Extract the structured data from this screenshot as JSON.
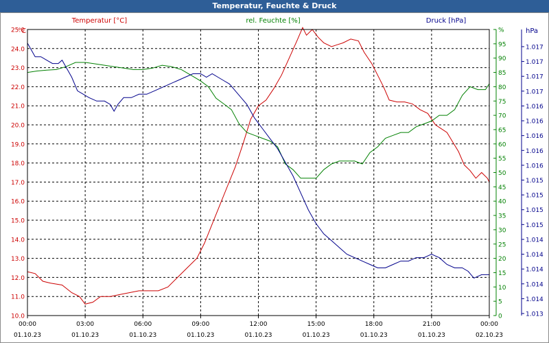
{
  "window": {
    "title": "Temperatur, Feuchte & Druck"
  },
  "legend": {
    "temperature": "Temperatur [°C]",
    "humidity": "rel. Feuchte [%]",
    "pressure": "Druck [hPa]"
  },
  "colors": {
    "temperature": "#cc0000",
    "humidity": "#008000",
    "pressure": "#00008b",
    "grid": "#000000",
    "titlebar": "#2e5e97"
  },
  "chart_data": {
    "type": "line",
    "title": "Temperatur, Feuchte & Druck",
    "grid": true,
    "x_ticks": [
      {
        "time": "00:00",
        "date": "01.10.23"
      },
      {
        "time": "03:00",
        "date": "01.10.23"
      },
      {
        "time": "06:00",
        "date": "01.10.23"
      },
      {
        "time": "09:00",
        "date": "01.10.23"
      },
      {
        "time": "12:00",
        "date": "01.10.23"
      },
      {
        "time": "15:00",
        "date": "01.10.23"
      },
      {
        "time": "18:00",
        "date": "01.10.23"
      },
      {
        "time": "21:00",
        "date": "01.10.23"
      },
      {
        "time": "00:00",
        "date": "02.10.23"
      }
    ],
    "x_range_hours": [
      0,
      24
    ],
    "axes": {
      "temperature": {
        "unit": "°C",
        "side": "left",
        "range": [
          10.0,
          25.0
        ],
        "ticks": [
          "10.0",
          "11.0",
          "12.0",
          "13.0",
          "14.0",
          "15.0",
          "16.0",
          "17.0",
          "18.0",
          "19.0",
          "20.0",
          "21.0",
          "22.0",
          "23.0",
          "24.0",
          "25.0"
        ]
      },
      "humidity": {
        "unit": "%",
        "side": "right",
        "range": [
          0,
          100
        ],
        "ticks": [
          "0",
          "5",
          "10",
          "15",
          "20",
          "25",
          "30",
          "35",
          "40",
          "45",
          "50",
          "55",
          "60",
          "65",
          "70",
          "75",
          "80",
          "85",
          "90",
          "95",
          "%"
        ]
      },
      "pressure": {
        "unit": "hPa",
        "side": "right",
        "range": [
          1013.0,
          1017.2
        ],
        "ticks": [
          "1.013",
          "1.014",
          "1.014",
          "1.014",
          "1.014",
          "1.014",
          "1.015",
          "1.015",
          "1.015",
          "1.015",
          "1.016",
          "1.016",
          "1.016",
          "1.016",
          "1.016",
          "1.017",
          "1.017",
          "1.017",
          "1.017"
        ]
      }
    },
    "series": [
      {
        "name": "Temperatur [°C]",
        "axis": "temperature",
        "points": [
          [
            0,
            12.3
          ],
          [
            0.4,
            12.2
          ],
          [
            0.8,
            11.8
          ],
          [
            1.2,
            11.7
          ],
          [
            1.8,
            11.6
          ],
          [
            2.3,
            11.2
          ],
          [
            2.7,
            11.0
          ],
          [
            3.0,
            10.6
          ],
          [
            3.4,
            10.7
          ],
          [
            3.8,
            11.0
          ],
          [
            4.3,
            11.0
          ],
          [
            4.8,
            11.1
          ],
          [
            5.3,
            11.2
          ],
          [
            5.8,
            11.3
          ],
          [
            6.3,
            11.3
          ],
          [
            6.8,
            11.3
          ],
          [
            7.3,
            11.5
          ],
          [
            7.8,
            12.0
          ],
          [
            8.3,
            12.5
          ],
          [
            8.8,
            13.0
          ],
          [
            9.2,
            13.8
          ],
          [
            9.6,
            14.8
          ],
          [
            10.0,
            15.8
          ],
          [
            10.4,
            16.8
          ],
          [
            10.8,
            17.8
          ],
          [
            11.2,
            19.0
          ],
          [
            11.6,
            20.3
          ],
          [
            12.0,
            21.0
          ],
          [
            12.4,
            21.3
          ],
          [
            12.8,
            21.9
          ],
          [
            13.2,
            22.6
          ],
          [
            13.6,
            23.5
          ],
          [
            14.0,
            24.4
          ],
          [
            14.3,
            25.1
          ],
          [
            14.5,
            24.7
          ],
          [
            14.8,
            25.0
          ],
          [
            15.1,
            24.6
          ],
          [
            15.4,
            24.3
          ],
          [
            15.8,
            24.1
          ],
          [
            16.1,
            24.2
          ],
          [
            16.4,
            24.3
          ],
          [
            16.8,
            24.5
          ],
          [
            17.2,
            24.4
          ],
          [
            17.5,
            23.8
          ],
          [
            17.9,
            23.2
          ],
          [
            18.2,
            22.6
          ],
          [
            18.5,
            22.0
          ],
          [
            18.8,
            21.3
          ],
          [
            19.2,
            21.2
          ],
          [
            19.6,
            21.2
          ],
          [
            20.0,
            21.1
          ],
          [
            20.4,
            20.8
          ],
          [
            20.8,
            20.6
          ],
          [
            21.2,
            20.0
          ],
          [
            21.5,
            19.8
          ],
          [
            21.8,
            19.6
          ],
          [
            22.1,
            19.1
          ],
          [
            22.4,
            18.6
          ],
          [
            22.7,
            17.9
          ],
          [
            23.0,
            17.6
          ],
          [
            23.3,
            17.2
          ],
          [
            23.6,
            17.5
          ],
          [
            23.9,
            17.2
          ],
          [
            24.0,
            17.0
          ]
        ]
      },
      {
        "name": "rel. Feuchte [%]",
        "axis": "humidity",
        "points": [
          [
            0,
            85
          ],
          [
            0.5,
            85.5
          ],
          [
            1.0,
            85.8
          ],
          [
            1.5,
            86
          ],
          [
            2.0,
            87
          ],
          [
            2.5,
            88.5
          ],
          [
            3.0,
            88.5
          ],
          [
            3.5,
            88
          ],
          [
            4.0,
            87.5
          ],
          [
            4.5,
            87
          ],
          [
            5.0,
            86.5
          ],
          [
            5.5,
            86
          ],
          [
            6.0,
            86
          ],
          [
            6.5,
            86.5
          ],
          [
            7.0,
            87.5
          ],
          [
            7.5,
            87
          ],
          [
            8.0,
            86
          ],
          [
            8.5,
            84
          ],
          [
            9.0,
            82
          ],
          [
            9.4,
            80
          ],
          [
            9.8,
            76
          ],
          [
            10.2,
            74
          ],
          [
            10.6,
            72
          ],
          [
            11.0,
            67
          ],
          [
            11.4,
            64
          ],
          [
            11.8,
            63
          ],
          [
            12.2,
            62
          ],
          [
            12.6,
            61
          ],
          [
            13.0,
            59
          ],
          [
            13.4,
            53
          ],
          [
            13.8,
            51
          ],
          [
            14.2,
            48
          ],
          [
            14.6,
            48
          ],
          [
            15.0,
            48
          ],
          [
            15.4,
            51
          ],
          [
            15.8,
            53
          ],
          [
            16.2,
            54
          ],
          [
            16.6,
            54
          ],
          [
            17.0,
            54
          ],
          [
            17.4,
            53
          ],
          [
            17.8,
            57
          ],
          [
            18.2,
            59
          ],
          [
            18.6,
            62
          ],
          [
            19.0,
            63
          ],
          [
            19.4,
            64
          ],
          [
            19.8,
            64
          ],
          [
            20.2,
            66
          ],
          [
            20.6,
            67
          ],
          [
            21.0,
            68
          ],
          [
            21.4,
            70
          ],
          [
            21.8,
            70
          ],
          [
            22.2,
            72
          ],
          [
            22.6,
            77
          ],
          [
            23.0,
            80
          ],
          [
            23.4,
            79
          ],
          [
            23.8,
            79
          ],
          [
            24.0,
            81
          ]
        ]
      },
      {
        "name": "Druck [hPa]",
        "axis": "pressure",
        "points": [
          [
            0,
            1017.0
          ],
          [
            0.2,
            1016.9
          ],
          [
            0.4,
            1016.8
          ],
          [
            0.7,
            1016.8
          ],
          [
            1.0,
            1016.75
          ],
          [
            1.3,
            1016.7
          ],
          [
            1.6,
            1016.7
          ],
          [
            1.8,
            1016.75
          ],
          [
            2.0,
            1016.65
          ],
          [
            2.3,
            1016.5
          ],
          [
            2.6,
            1016.3
          ],
          [
            2.9,
            1016.25
          ],
          [
            3.2,
            1016.2
          ],
          [
            3.6,
            1016.15
          ],
          [
            4.0,
            1016.15
          ],
          [
            4.3,
            1016.1
          ],
          [
            4.5,
            1016.0
          ],
          [
            4.7,
            1016.1
          ],
          [
            5.0,
            1016.2
          ],
          [
            5.4,
            1016.2
          ],
          [
            5.8,
            1016.25
          ],
          [
            6.2,
            1016.25
          ],
          [
            6.6,
            1016.3
          ],
          [
            7.0,
            1016.35
          ],
          [
            7.4,
            1016.4
          ],
          [
            7.8,
            1016.45
          ],
          [
            8.2,
            1016.5
          ],
          [
            8.6,
            1016.55
          ],
          [
            9.0,
            1016.55
          ],
          [
            9.3,
            1016.5
          ],
          [
            9.6,
            1016.55
          ],
          [
            9.9,
            1016.5
          ],
          [
            10.2,
            1016.45
          ],
          [
            10.5,
            1016.4
          ],
          [
            10.8,
            1016.3
          ],
          [
            11.1,
            1016.2
          ],
          [
            11.4,
            1016.1
          ],
          [
            11.8,
            1015.9
          ],
          [
            12.2,
            1015.75
          ],
          [
            12.6,
            1015.6
          ],
          [
            13.0,
            1015.45
          ],
          [
            13.4,
            1015.25
          ],
          [
            13.8,
            1015.05
          ],
          [
            14.2,
            1014.8
          ],
          [
            14.6,
            1014.55
          ],
          [
            15.0,
            1014.35
          ],
          [
            15.4,
            1014.2
          ],
          [
            15.8,
            1014.1
          ],
          [
            16.2,
            1014.0
          ],
          [
            16.6,
            1013.9
          ],
          [
            17.0,
            1013.85
          ],
          [
            17.4,
            1013.8
          ],
          [
            17.8,
            1013.75
          ],
          [
            18.2,
            1013.7
          ],
          [
            18.6,
            1013.7
          ],
          [
            19.0,
            1013.75
          ],
          [
            19.4,
            1013.8
          ],
          [
            19.8,
            1013.8
          ],
          [
            20.2,
            1013.85
          ],
          [
            20.6,
            1013.85
          ],
          [
            21.0,
            1013.9
          ],
          [
            21.4,
            1013.85
          ],
          [
            21.8,
            1013.75
          ],
          [
            22.2,
            1013.7
          ],
          [
            22.6,
            1013.7
          ],
          [
            22.9,
            1013.65
          ],
          [
            23.2,
            1013.55
          ],
          [
            23.6,
            1013.6
          ],
          [
            24.0,
            1013.6
          ]
        ]
      }
    ]
  }
}
